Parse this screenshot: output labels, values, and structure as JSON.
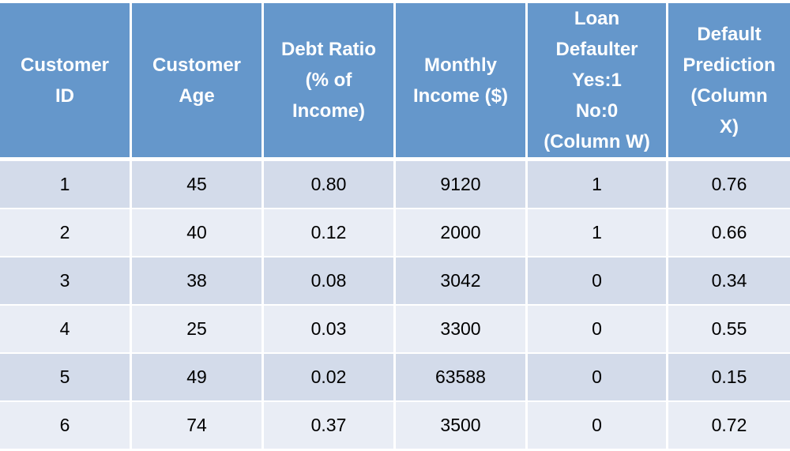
{
  "table": {
    "headers": [
      [
        "Customer",
        "ID"
      ],
      [
        "Customer",
        "Age"
      ],
      [
        "Debt Ratio",
        "(% of",
        "Income)"
      ],
      [
        "Monthly",
        "Income ($)"
      ],
      [
        "Loan",
        "Defaulter",
        "Yes:1",
        "No:0",
        "(Column W)"
      ],
      [
        "Default",
        "Prediction",
        "(Column",
        "X)"
      ]
    ],
    "rows": [
      [
        "1",
        "45",
        "0.80",
        "9120",
        "1",
        "0.76"
      ],
      [
        "2",
        "40",
        "0.12",
        "2000",
        "1",
        "0.66"
      ],
      [
        "3",
        "38",
        "0.08",
        "3042",
        "0",
        "0.34"
      ],
      [
        "4",
        "25",
        "0.03",
        "3300",
        "0",
        "0.55"
      ],
      [
        "5",
        "49",
        "0.02",
        "63588",
        "0",
        "0.15"
      ],
      [
        "6",
        "74",
        "0.37",
        "3500",
        "0",
        "0.72"
      ]
    ]
  },
  "colors": {
    "header_bg": "#6597cb",
    "row_odd_bg": "#d3dbea",
    "row_even_bg": "#e9edf5"
  }
}
